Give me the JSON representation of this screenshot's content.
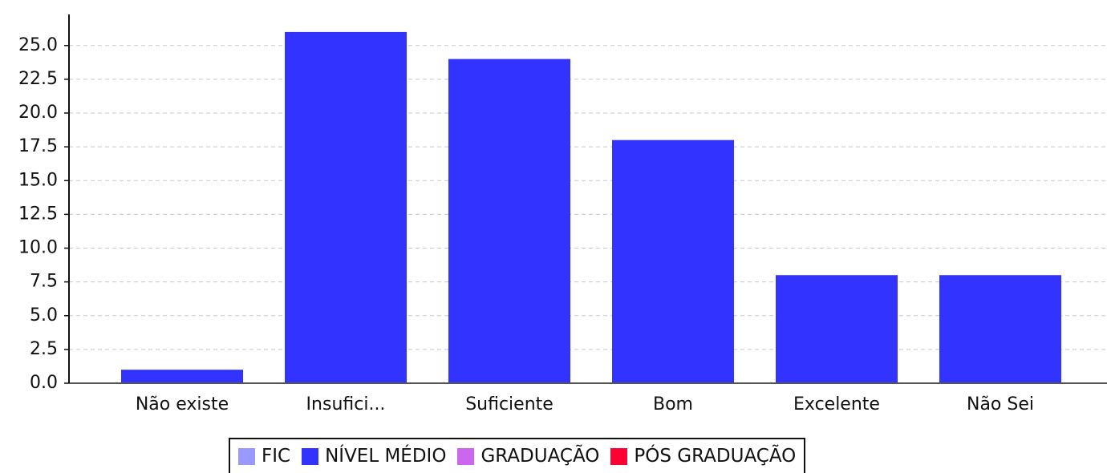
{
  "chart_data": {
    "type": "stacked_bar",
    "categories": [
      "Não existe",
      "Insufici...",
      "Suficiente",
      "Bom",
      "Excelente",
      "Não Sei"
    ],
    "series": [
      {
        "name": "FIC",
        "color": "#9999ff",
        "values": [
          0,
          0,
          0,
          0,
          0,
          0
        ]
      },
      {
        "name": "NÍVEL MÉDIO",
        "color": "#3333ff",
        "values": [
          1,
          26,
          24,
          18,
          8,
          8
        ]
      },
      {
        "name": "GRADUAÇÃO",
        "color": "#cc66ee",
        "values": [
          0,
          0,
          0,
          0,
          0,
          0
        ]
      },
      {
        "name": "PÓS GRADUAÇÃO",
        "color": "#ff0033",
        "values": [
          0,
          0,
          0,
          0,
          0,
          0
        ]
      }
    ],
    "ylim": [
      0,
      27.3
    ],
    "yticks": [
      {
        "value": 0,
        "label": "0.0"
      },
      2.5,
      {
        "value": 5,
        "label": "5.0"
      },
      7.5,
      {
        "value": 10,
        "label": "10.0"
      },
      12.5,
      {
        "value": 15,
        "label": "15.0"
      },
      17.5,
      {
        "value": 20,
        "label": "20.0"
      },
      22.5,
      {
        "value": 25,
        "label": "25.0"
      }
    ],
    "grid": true,
    "legend": "bottom"
  }
}
